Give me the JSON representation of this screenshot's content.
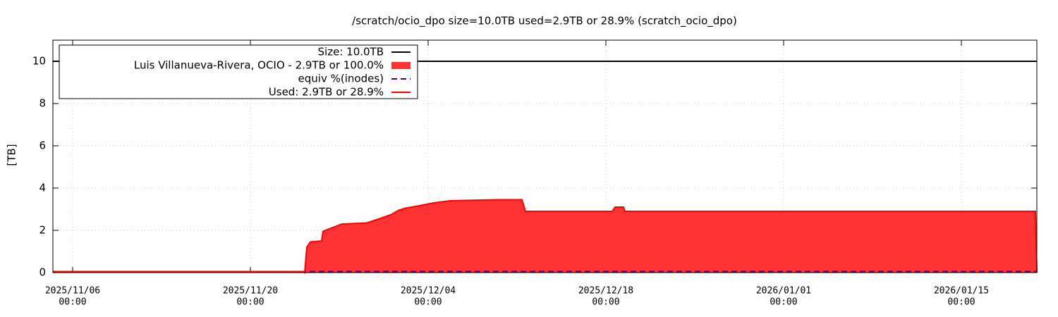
{
  "chart_data": {
    "type": "line",
    "title": "/scratch/ocio_dpo size=10.0TB used=2.9TB or 28.9% (scratch_ocio_dpo)",
    "y_label": "[TB]",
    "xlim": [
      "2025-11-04 10:40",
      "2026-01-20 22:40"
    ],
    "ylim": [
      0,
      11
    ],
    "yticks": [
      0,
      2,
      4,
      6,
      8,
      10
    ],
    "xticks": [
      {
        "value": "2025-11-06 00:00",
        "label": [
          "2025/11/06",
          "00:00"
        ]
      },
      {
        "value": "2025-11-20 00:00",
        "label": [
          "2025/11/20",
          "00:00"
        ]
      },
      {
        "value": "2025-12-04 00:00",
        "label": [
          "2025/12/04",
          "00:00"
        ]
      },
      {
        "value": "2025-12-18 00:00",
        "label": [
          "2025/12/18",
          "00:00"
        ]
      },
      {
        "value": "2026-01-01 00:00",
        "label": [
          "2026/01/01",
          "00:00"
        ]
      },
      {
        "value": "2026-01-15 00:00",
        "label": [
          "2026/01/15",
          "00:00"
        ]
      }
    ],
    "grid": true,
    "legend": "top-left",
    "series": [
      {
        "name": "Size: 10.0TB",
        "color": "#000000",
        "style": "line",
        "x": [
          "2025-11-04 10:40",
          "2026-01-20 22:40"
        ],
        "values": [
          10,
          10
        ]
      },
      {
        "name": "Luis Villanueva-Rivera, OCIO - 2.9TB or 100.0%",
        "color": "#ff3333",
        "style": "area",
        "x": [
          "2025-11-04 10:40",
          "2025-11-24 04:00",
          "2025-11-24 06:40",
          "2025-11-24 10:40",
          "2025-11-24 17:20",
          "2025-11-25 14:40",
          "2025-11-25 17:20",
          "2025-11-26 02:40",
          "2025-11-27 05:20",
          "2025-11-29 04:00",
          "2025-11-30 04:00",
          "2025-12-01 02:40",
          "2025-12-01 16:00",
          "2025-12-02 05:20",
          "2025-12-03 04:00",
          "2025-12-04 10:40",
          "2025-12-05 17:20",
          "2025-12-09 10:40",
          "2025-12-11 09:20",
          "2025-12-11 16:00",
          "2025-12-18 12:00",
          "2025-12-18 17:20",
          "2025-12-19 09:20",
          "2025-12-19 12:00",
          "2026-01-20 20:00",
          "2026-01-20 22:40"
        ],
        "values": [
          0.05,
          0.05,
          0,
          1.2,
          1.45,
          1.5,
          1.95,
          2.05,
          2.3,
          2.35,
          2.55,
          2.75,
          2.95,
          3.05,
          3.15,
          3.3,
          3.4,
          3.45,
          3.45,
          2.9,
          2.9,
          3.1,
          3.1,
          2.9,
          2.9,
          0
        ]
      },
      {
        "name": "equiv %(inodes)",
        "color": "#4b0082",
        "style": "dash",
        "x": [
          "2025-11-04 10:40",
          "2026-01-20 22:40"
        ],
        "values": [
          0.05,
          0.05
        ]
      },
      {
        "name": "Used: 2.9TB or 28.9%",
        "color": "#ff0000",
        "style": "line",
        "x": [
          "2025-11-04 10:40",
          "2025-11-24 04:00",
          "2025-11-24 06:40",
          "2025-11-24 10:40",
          "2025-11-24 17:20",
          "2025-11-25 14:40",
          "2025-11-25 17:20",
          "2025-11-26 02:40",
          "2025-11-27 05:20",
          "2025-11-29 04:00",
          "2025-11-30 04:00",
          "2025-12-01 02:40",
          "2025-12-01 16:00",
          "2025-12-02 05:20",
          "2025-12-03 04:00",
          "2025-12-04 10:40",
          "2025-12-05 17:20",
          "2025-12-09 10:40",
          "2025-12-11 09:20",
          "2025-12-11 16:00",
          "2025-12-18 12:00",
          "2025-12-18 17:20",
          "2025-12-19 09:20",
          "2025-12-19 12:00",
          "2026-01-20 20:00",
          "2026-01-20 22:40"
        ],
        "values": [
          0.05,
          0.05,
          0,
          1.2,
          1.45,
          1.5,
          1.95,
          2.05,
          2.3,
          2.35,
          2.55,
          2.75,
          2.95,
          3.05,
          3.15,
          3.3,
          3.4,
          3.45,
          3.45,
          2.9,
          2.9,
          3.1,
          3.1,
          2.9,
          2.9,
          0
        ]
      }
    ]
  }
}
